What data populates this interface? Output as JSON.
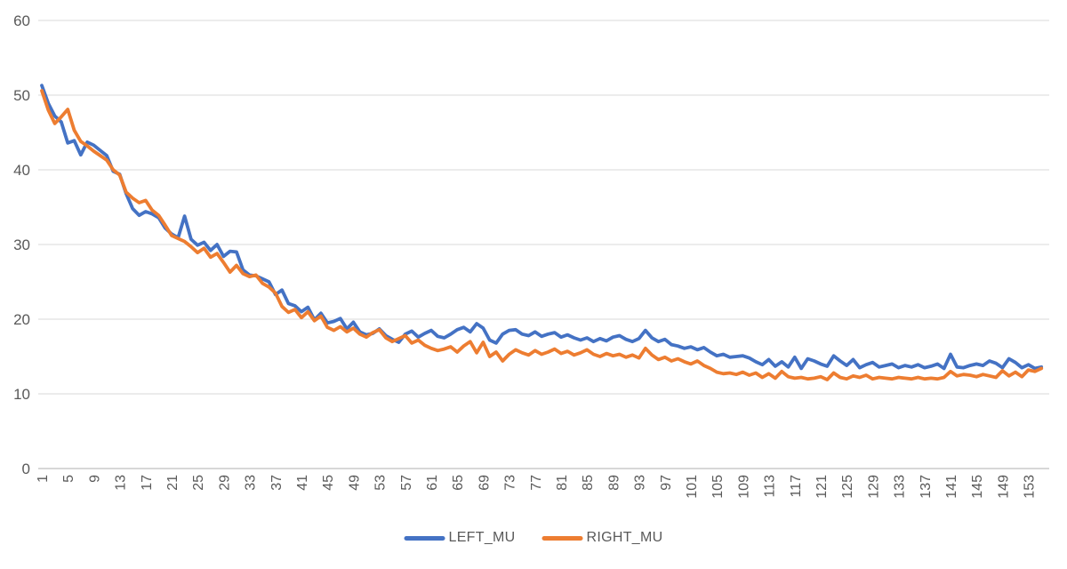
{
  "chart_data": {
    "type": "line",
    "title": "",
    "xlabel": "",
    "ylabel": "",
    "ylim": [
      0,
      60
    ],
    "y_ticks": [
      0,
      10,
      20,
      30,
      40,
      50,
      60
    ],
    "x_ticks": [
      1,
      5,
      9,
      13,
      17,
      21,
      25,
      29,
      33,
      37,
      41,
      45,
      49,
      53,
      57,
      61,
      65,
      69,
      73,
      77,
      81,
      85,
      89,
      93,
      97,
      101,
      105,
      109,
      113,
      117,
      121,
      125,
      129,
      133,
      137,
      141,
      145,
      149,
      153
    ],
    "x_count": 155,
    "grid": true,
    "legend_position": "bottom",
    "axis_text_color": "#595959",
    "gridline_color": "#D9D9D9",
    "axis_line_color": "#BFBFBF",
    "series": [
      {
        "name": "LEFT_MU",
        "color": "#4472C4",
        "values": [
          51.3,
          48.9,
          47.2,
          46.4,
          43.6,
          43.9,
          42.0,
          43.7,
          43.3,
          42.6,
          41.9,
          39.8,
          39.4,
          36.8,
          34.8,
          33.9,
          34.4,
          34.1,
          33.6,
          32.2,
          31.4,
          30.9,
          33.8,
          30.7,
          29.9,
          30.3,
          29.2,
          30.0,
          28.4,
          29.1,
          29.0,
          26.6,
          25.9,
          25.8,
          25.4,
          25.0,
          23.3,
          23.9,
          22.1,
          21.8,
          21.0,
          21.6,
          19.9,
          20.8,
          19.5,
          19.7,
          20.1,
          18.7,
          19.6,
          18.3,
          17.9,
          18.1,
          18.7,
          17.8,
          17.3,
          16.9,
          18.0,
          18.4,
          17.6,
          18.1,
          18.5,
          17.7,
          17.5,
          18.0,
          18.6,
          18.9,
          18.3,
          19.4,
          18.8,
          17.2,
          16.8,
          18.0,
          18.5,
          18.6,
          18.0,
          17.8,
          18.3,
          17.7,
          18.0,
          18.2,
          17.6,
          17.9,
          17.5,
          17.2,
          17.5,
          17.0,
          17.4,
          17.1,
          17.6,
          17.8,
          17.3,
          17.0,
          17.4,
          18.5,
          17.5,
          17.0,
          17.3,
          16.6,
          16.4,
          16.1,
          16.3,
          15.9,
          16.2,
          15.6,
          15.1,
          15.3,
          14.9,
          15.0,
          15.1,
          14.8,
          14.3,
          13.9,
          14.6,
          13.7,
          14.3,
          13.6,
          14.9,
          13.4,
          14.7,
          14.4,
          14.0,
          13.7,
          15.1,
          14.4,
          13.8,
          14.6,
          13.5,
          13.9,
          14.2,
          13.6,
          13.8,
          14.0,
          13.5,
          13.8,
          13.6,
          13.9,
          13.5,
          13.7,
          14.0,
          13.4,
          15.3,
          13.6,
          13.5,
          13.8,
          14.0,
          13.8,
          14.4,
          14.1,
          13.5,
          14.7,
          14.2,
          13.5,
          13.9,
          13.4,
          13.6
        ]
      },
      {
        "name": "RIGHT_MU",
        "color": "#ED7D31",
        "values": [
          50.6,
          48.0,
          46.2,
          47.1,
          48.1,
          45.3,
          43.8,
          43.2,
          42.5,
          41.9,
          41.3,
          40.0,
          39.3,
          37.0,
          36.2,
          35.6,
          35.9,
          34.6,
          33.9,
          32.6,
          31.2,
          30.8,
          30.4,
          29.7,
          28.9,
          29.5,
          28.3,
          28.8,
          27.6,
          26.3,
          27.2,
          26.1,
          25.7,
          25.9,
          24.8,
          24.3,
          23.5,
          21.7,
          20.9,
          21.3,
          20.2,
          21.0,
          19.8,
          20.4,
          18.9,
          18.5,
          19.0,
          18.3,
          18.8,
          18.0,
          17.6,
          18.2,
          18.6,
          17.5,
          17.0,
          17.4,
          17.8,
          16.8,
          17.2,
          16.5,
          16.1,
          15.8,
          16.0,
          16.3,
          15.6,
          16.4,
          17.0,
          15.5,
          16.9,
          15.0,
          15.6,
          14.4,
          15.3,
          15.9,
          15.5,
          15.2,
          15.8,
          15.3,
          15.6,
          16.0,
          15.4,
          15.7,
          15.2,
          15.5,
          15.9,
          15.3,
          15.0,
          15.4,
          15.1,
          15.3,
          14.9,
          15.2,
          14.8,
          16.1,
          15.2,
          14.6,
          14.9,
          14.4,
          14.7,
          14.3,
          14.0,
          14.4,
          13.8,
          13.4,
          12.9,
          12.7,
          12.8,
          12.6,
          12.9,
          12.5,
          12.8,
          12.2,
          12.7,
          12.1,
          13.0,
          12.3,
          12.1,
          12.2,
          12.0,
          12.1,
          12.3,
          11.9,
          12.8,
          12.2,
          12.0,
          12.4,
          12.2,
          12.5,
          12.0,
          12.2,
          12.1,
          12.0,
          12.2,
          12.1,
          12.0,
          12.2,
          12.0,
          12.1,
          12.0,
          12.2,
          13.0,
          12.4,
          12.6,
          12.5,
          12.3,
          12.6,
          12.4,
          12.2,
          13.1,
          12.4,
          12.9,
          12.3,
          13.2,
          13.0,
          13.4
        ]
      }
    ]
  },
  "legend": {
    "items": [
      {
        "label": "LEFT_MU",
        "color": "#4472C4"
      },
      {
        "label": "RIGHT_MU",
        "color": "#ED7D31"
      }
    ]
  }
}
